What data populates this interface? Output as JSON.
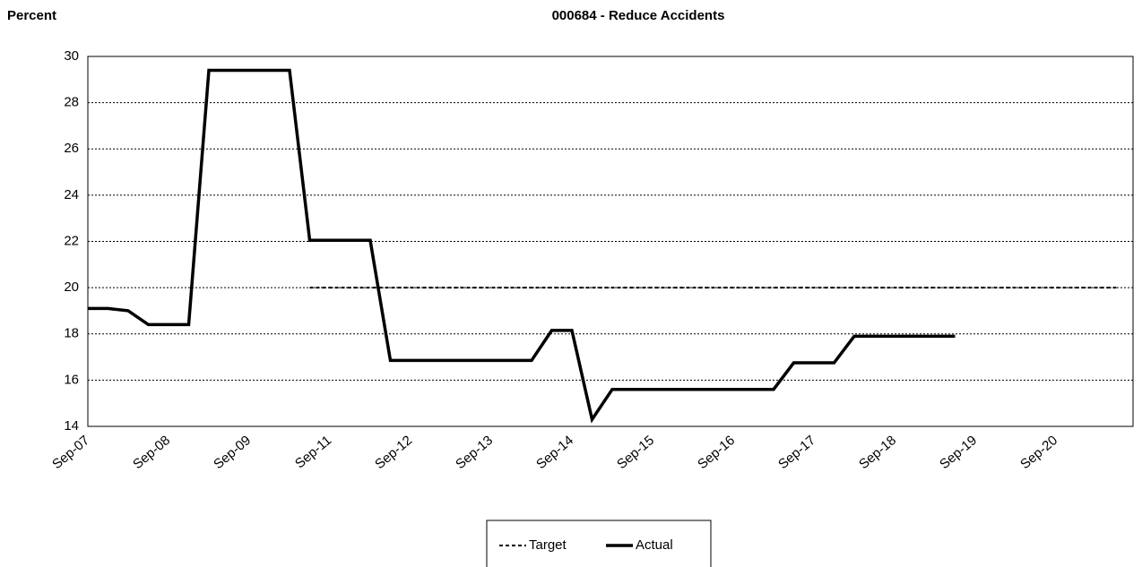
{
  "chart_data": {
    "type": "line",
    "title": "000684 - Reduce Accidents",
    "y_label": "Percent",
    "categories": [
      "Sep-07",
      null,
      null,
      null,
      "Sep-08",
      null,
      null,
      null,
      "Sep-09",
      null,
      null,
      null,
      "Sep-11",
      null,
      null,
      null,
      "Sep-12",
      null,
      null,
      null,
      "Sep-13",
      null,
      null,
      null,
      "Sep-14",
      null,
      null,
      null,
      "Sep-15",
      null,
      null,
      null,
      "Sep-16",
      null,
      null,
      null,
      "Sep-17",
      null,
      null,
      null,
      "Sep-18",
      null,
      null,
      null,
      "Sep-19",
      null,
      null,
      null,
      "Sep-20",
      null,
      null,
      null
    ],
    "series": [
      {
        "name": "Target",
        "color": "#000000",
        "dash": true,
        "values": [
          null,
          null,
          null,
          null,
          null,
          null,
          null,
          null,
          null,
          null,
          null,
          20,
          20,
          20,
          20,
          20,
          20,
          20,
          20,
          20,
          20,
          20,
          20,
          20,
          20,
          20,
          20,
          20,
          20,
          20,
          20,
          20,
          20,
          20,
          20,
          20,
          20,
          20,
          20,
          20,
          20,
          20,
          20,
          20,
          20,
          20,
          20,
          20,
          20,
          20,
          20,
          20
        ]
      },
      {
        "name": "Actual",
        "color": "#000000",
        "dash": false,
        "values": [
          19.1,
          19.1,
          19.0,
          18.4,
          18.4,
          18.4,
          29.4,
          29.4,
          29.4,
          29.4,
          29.4,
          22.05,
          22.05,
          22.05,
          22.05,
          16.85,
          16.85,
          16.85,
          16.85,
          16.85,
          16.85,
          16.85,
          16.85,
          18.15,
          18.15,
          14.3,
          15.6,
          15.6,
          15.6,
          15.6,
          15.6,
          15.6,
          15.6,
          15.6,
          15.6,
          16.75,
          16.75,
          16.75,
          17.9,
          17.9,
          17.9,
          17.9,
          17.9,
          17.9,
          null,
          null,
          null,
          null,
          null,
          null,
          null,
          null
        ]
      }
    ],
    "ylim": [
      14,
      30
    ],
    "yticks": [
      14,
      16,
      18,
      20,
      22,
      24,
      26,
      28,
      30
    ],
    "grid": true
  }
}
